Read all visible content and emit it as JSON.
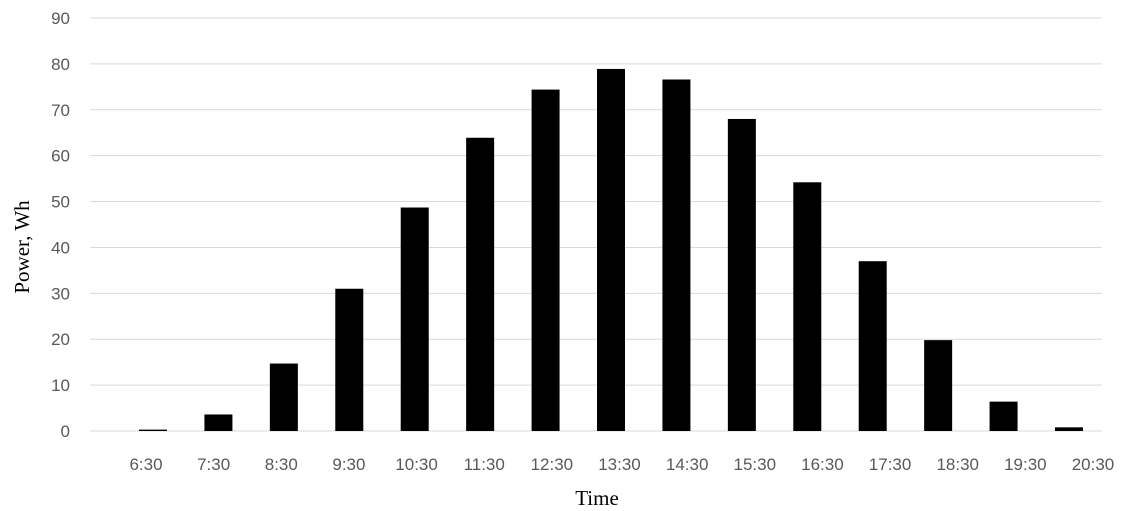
{
  "chart_data": {
    "type": "bar",
    "title": "",
    "xlabel": "Time",
    "ylabel": "Power, Wh",
    "categories": [
      "6:30",
      "7:30",
      "8:30",
      "9:30",
      "10:30",
      "11:30",
      "12:30",
      "13:30",
      "14:30",
      "15:30",
      "16:30",
      "17:30",
      "18:30",
      "19:30",
      "20:30"
    ],
    "values": [
      0.3,
      3.6,
      14.7,
      31,
      48.7,
      63.9,
      74.4,
      78.9,
      76.6,
      68,
      54.2,
      37,
      19.8,
      6.4,
      0.8
    ],
    "ylim": [
      0,
      90
    ],
    "yticks": [
      0,
      10,
      20,
      30,
      40,
      50,
      60,
      70,
      80,
      90
    ],
    "grid": true,
    "legend": "none",
    "colors": {
      "bar": "#000000",
      "grid": "#d9d9d9",
      "tick_text": "#595959"
    }
  }
}
